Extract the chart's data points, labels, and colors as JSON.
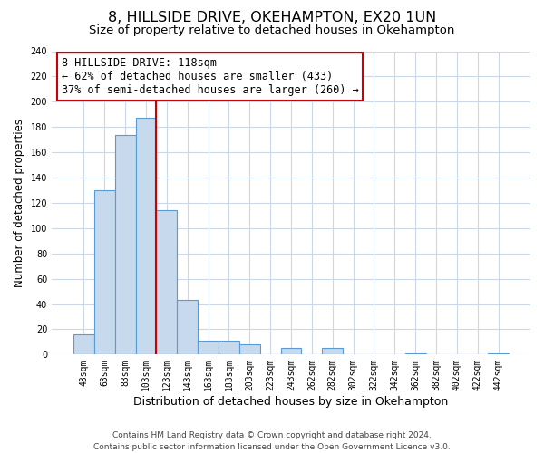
{
  "title": "8, HILLSIDE DRIVE, OKEHAMPTON, EX20 1UN",
  "subtitle": "Size of property relative to detached houses in Okehampton",
  "xlabel": "Distribution of detached houses by size in Okehampton",
  "ylabel": "Number of detached properties",
  "bar_labels": [
    "43sqm",
    "63sqm",
    "83sqm",
    "103sqm",
    "123sqm",
    "143sqm",
    "163sqm",
    "183sqm",
    "203sqm",
    "223sqm",
    "243sqm",
    "262sqm",
    "282sqm",
    "302sqm",
    "322sqm",
    "342sqm",
    "362sqm",
    "382sqm",
    "402sqm",
    "422sqm",
    "442sqm"
  ],
  "bar_values": [
    16,
    130,
    174,
    187,
    114,
    43,
    11,
    11,
    8,
    0,
    5,
    0,
    5,
    0,
    0,
    0,
    1,
    0,
    0,
    0,
    1
  ],
  "bar_color": "#c6d9ed",
  "bar_edge_color": "#5b9bd5",
  "vline_color": "#cc0000",
  "vline_bin_index": 4,
  "annotation_title": "8 HILLSIDE DRIVE: 118sqm",
  "annotation_line1": "← 62% of detached houses are smaller (433)",
  "annotation_line2": "37% of semi-detached houses are larger (260) →",
  "annotation_box_color": "#ffffff",
  "annotation_box_edge": "#cc0000",
  "ylim": [
    0,
    240
  ],
  "yticks": [
    0,
    20,
    40,
    60,
    80,
    100,
    120,
    140,
    160,
    180,
    200,
    220,
    240
  ],
  "footer_line1": "Contains HM Land Registry data © Crown copyright and database right 2024.",
  "footer_line2": "Contains public sector information licensed under the Open Government Licence v3.0.",
  "bg_color": "#ffffff",
  "grid_color": "#ccd8e8",
  "title_fontsize": 11.5,
  "subtitle_fontsize": 9.5,
  "xlabel_fontsize": 9,
  "ylabel_fontsize": 8.5,
  "tick_fontsize": 7,
  "annotation_fontsize": 8.5,
  "footer_fontsize": 6.5
}
